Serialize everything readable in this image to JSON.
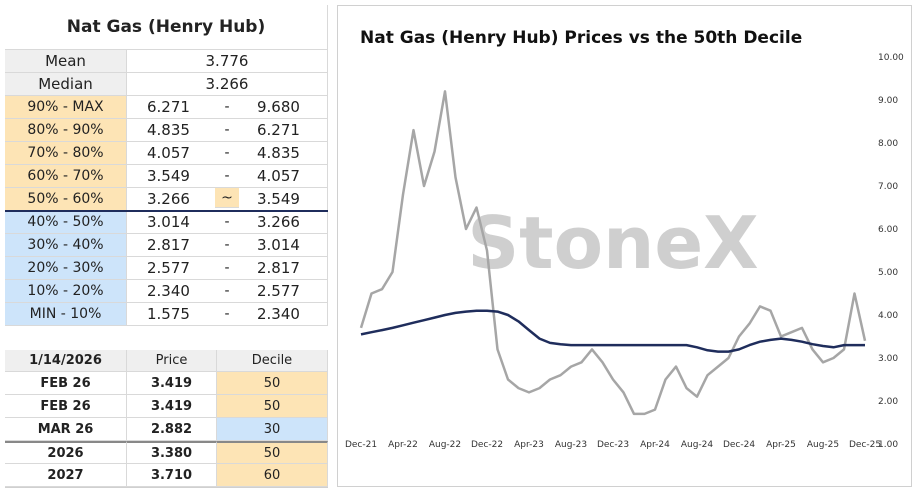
{
  "summary_table": {
    "title": "Nat Gas (Henry Hub)",
    "stats": [
      [
        "Mean",
        "3.776"
      ],
      [
        "Median",
        "3.266"
      ]
    ],
    "rows": [
      [
        "90% - MAX",
        "6.271",
        "-",
        "9.680"
      ],
      [
        "80% - 90%",
        "4.835",
        "-",
        "6.271"
      ],
      [
        "70% - 80%",
        "4.057",
        "-",
        "4.835"
      ],
      [
        "60% - 70%",
        "3.549",
        "-",
        "4.057"
      ],
      [
        "50% - 60%",
        "3.266",
        "~",
        "3.549"
      ],
      [
        "40% - 50%",
        "3.014",
        "-",
        "3.266"
      ],
      [
        "30% - 40%",
        "2.817",
        "-",
        "3.014"
      ],
      [
        "20% - 30%",
        "2.577",
        "-",
        "2.817"
      ],
      [
        "10% - 20%",
        "2.340",
        "-",
        "2.577"
      ],
      [
        "MIN - 10%",
        "1.575",
        "-",
        "2.340"
      ]
    ]
  },
  "price_table": {
    "header": [
      "1/14/2026",
      "Price",
      "Decile"
    ],
    "rows": [
      [
        "FEB 26",
        "3.419",
        "50"
      ],
      [
        "FEB 26",
        "3.419",
        "50"
      ],
      [
        "MAR 26",
        "2.882",
        "30"
      ],
      [
        "2026",
        "3.380",
        "50"
      ],
      [
        "2027",
        "3.710",
        "60"
      ]
    ]
  },
  "chart_data": {
    "type": "line",
    "title": "Nat Gas (Henry Hub) Prices vs the 50th Decile",
    "watermark": "StoneX",
    "categories": [
      "Dec-21",
      null,
      null,
      null,
      "Apr-22",
      null,
      null,
      null,
      "Aug-22",
      null,
      null,
      null,
      "Dec-22",
      null,
      null,
      null,
      "Apr-23",
      null,
      null,
      null,
      "Aug-23",
      null,
      null,
      null,
      "Dec-23",
      null,
      null,
      null,
      "Apr-24",
      null,
      null,
      null,
      "Aug-24",
      null,
      null,
      null,
      "Dec-24",
      null,
      null,
      null,
      "Apr-25",
      null,
      null,
      null,
      "Aug-25",
      null,
      null,
      null,
      "Dec-25"
    ],
    "series": [
      {
        "color": "#a6a6a6",
        "values": [
          3.7,
          4.5,
          4.6,
          5.0,
          6.8,
          8.3,
          7.0,
          7.8,
          9.2,
          7.2,
          6.0,
          6.5,
          5.5,
          3.2,
          2.5,
          2.3,
          2.2,
          2.3,
          2.5,
          2.6,
          2.8,
          2.9,
          3.2,
          2.9,
          2.5,
          2.2,
          1.7,
          1.7,
          1.8,
          2.5,
          2.8,
          2.3,
          2.1,
          2.6,
          2.8,
          3.0,
          3.5,
          3.8,
          4.2,
          4.1,
          3.5,
          3.6,
          3.7,
          3.2,
          2.9,
          3.0,
          3.2,
          4.5,
          3.4
        ]
      },
      {
        "color": "#1f2d5c",
        "values": [
          3.55,
          3.6,
          3.65,
          3.7,
          3.76,
          3.82,
          3.88,
          3.94,
          4.0,
          4.05,
          4.08,
          4.1,
          4.1,
          4.08,
          4.0,
          3.85,
          3.65,
          3.45,
          3.35,
          3.32,
          3.3,
          3.3,
          3.3,
          3.3,
          3.3,
          3.3,
          3.3,
          3.3,
          3.3,
          3.3,
          3.3,
          3.3,
          3.25,
          3.18,
          3.15,
          3.15,
          3.2,
          3.3,
          3.38,
          3.42,
          3.45,
          3.42,
          3.38,
          3.32,
          3.28,
          3.25,
          3.3,
          3.3,
          3.3
        ]
      }
    ],
    "ylim": [
      1,
      10
    ],
    "yticks": [
      {
        "value": 1,
        "label": "1.00"
      },
      {
        "value": 2,
        "label": "2.00"
      },
      {
        "value": 3,
        "label": "3.00"
      },
      {
        "value": 4,
        "label": "4.00"
      },
      {
        "value": 5,
        "label": "5.00"
      },
      {
        "value": 6,
        "label": "6.00"
      },
      {
        "value": 7,
        "label": "7.00"
      },
      {
        "value": 8,
        "label": "8.00"
      },
      {
        "value": 9,
        "label": "9.00"
      },
      {
        "value": 10,
        "label": "10.00"
      }
    ],
    "y_axis_side": "right",
    "grid": false
  }
}
